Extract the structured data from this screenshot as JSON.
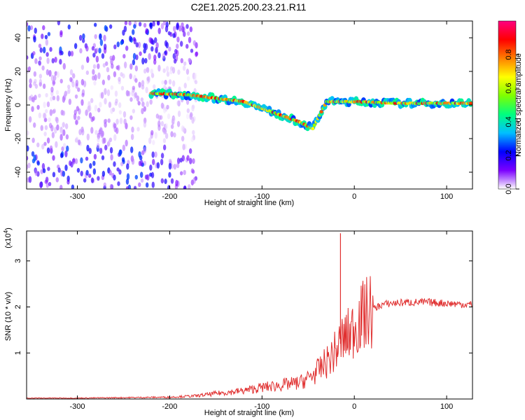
{
  "title": "C2E1.2025.200.23.21.R11",
  "chart_data": [
    {
      "type": "heatmap",
      "xlabel": "Height of straight line (km)",
      "ylabel": "Frequency (Hz)",
      "xlim": [
        -355,
        128
      ],
      "ylim": [
        -50,
        50
      ],
      "xticks": [
        -300,
        -200,
        -100,
        0,
        100
      ],
      "xtick_labels": [
        "-300",
        "-200",
        "-100",
        "0",
        "100"
      ],
      "yticks": [
        -40,
        -20,
        0,
        20,
        40
      ],
      "ytick_labels": [
        "-40",
        "-20",
        "0",
        "20",
        "40"
      ],
      "colorbar": {
        "label": "Normalized spectral amplitude",
        "range": [
          0,
          1
        ],
        "ticks": [
          0.0,
          0.2,
          0.4,
          0.6,
          0.8
        ],
        "tick_labels": [
          "0.0",
          "0.2",
          "0.4",
          "0.6",
          "0.8"
        ],
        "colormap": [
          "#ffffff",
          "#7b00ff",
          "#0000ff",
          "#00bfff",
          "#00ff7f",
          "#7fff00",
          "#ffff00",
          "#ff7f00",
          "#ff0000",
          "#ff0080"
        ]
      },
      "features": [
        {
          "name": "noise-band-top",
          "x_range": [
            -355,
            -170
          ],
          "y_range": [
            25,
            50
          ],
          "amplitude": 0.25
        },
        {
          "name": "noise-band-bottom",
          "x_range": [
            -355,
            -170
          ],
          "y_range": [
            -50,
            -25
          ],
          "amplitude": 0.25
        },
        {
          "name": "noise-mid",
          "x_range": [
            -355,
            -170
          ],
          "y_range": [
            -25,
            25
          ],
          "amplitude": 0.08
        },
        {
          "name": "signal-ridge",
          "points": [
            [
              -220,
              7
            ],
            [
              -180,
              6
            ],
            [
              -150,
              4
            ],
            [
              -120,
              2
            ],
            [
              -100,
              -2
            ],
            [
              -80,
              -6
            ],
            [
              -60,
              -10
            ],
            [
              -45,
              -14
            ],
            [
              -30,
              2
            ],
            [
              0,
              2
            ],
            [
              50,
              1
            ],
            [
              128,
              1
            ]
          ],
          "amplitude": 0.9
        }
      ]
    },
    {
      "type": "line",
      "xlabel": "Height of straight line (km)",
      "ylabel": "SNR (10 * v/v)",
      "multiplier": "(x10",
      "multiplier_exp": "4",
      "multiplier_close": ")",
      "xlim": [
        -355,
        128
      ],
      "ylim": [
        0,
        3.65
      ],
      "xticks": [
        -300,
        -200,
        -100,
        0,
        100
      ],
      "xtick_labels": [
        "-300",
        "-200",
        "-100",
        "0",
        "100"
      ],
      "yticks": [
        1,
        2,
        3
      ],
      "ytick_labels": [
        "1",
        "2",
        "3"
      ],
      "color": "#e03030",
      "series": [
        {
          "x": [
            -355,
            -300,
            -250,
            -200,
            -170,
            -150,
            -120,
            -100,
            -80,
            -60,
            -50,
            -40,
            -30,
            -22,
            -18,
            -15,
            -12,
            -8,
            -3,
            0,
            10,
            20,
            30,
            40,
            60,
            80,
            100,
            115,
            128
          ],
          "y": [
            0.02,
            0.02,
            0.03,
            0.04,
            0.07,
            0.12,
            0.18,
            0.25,
            0.3,
            0.35,
            0.45,
            0.6,
            0.8,
            1.0,
            1.1,
            1.25,
            1.3,
            1.35,
            1.45,
            1.6,
            1.8,
            1.95,
            2.05,
            2.08,
            2.1,
            2.1,
            2.08,
            2.06,
            2.05
          ],
          "spike": {
            "x": -15,
            "y": 3.6
          }
        }
      ]
    }
  ]
}
